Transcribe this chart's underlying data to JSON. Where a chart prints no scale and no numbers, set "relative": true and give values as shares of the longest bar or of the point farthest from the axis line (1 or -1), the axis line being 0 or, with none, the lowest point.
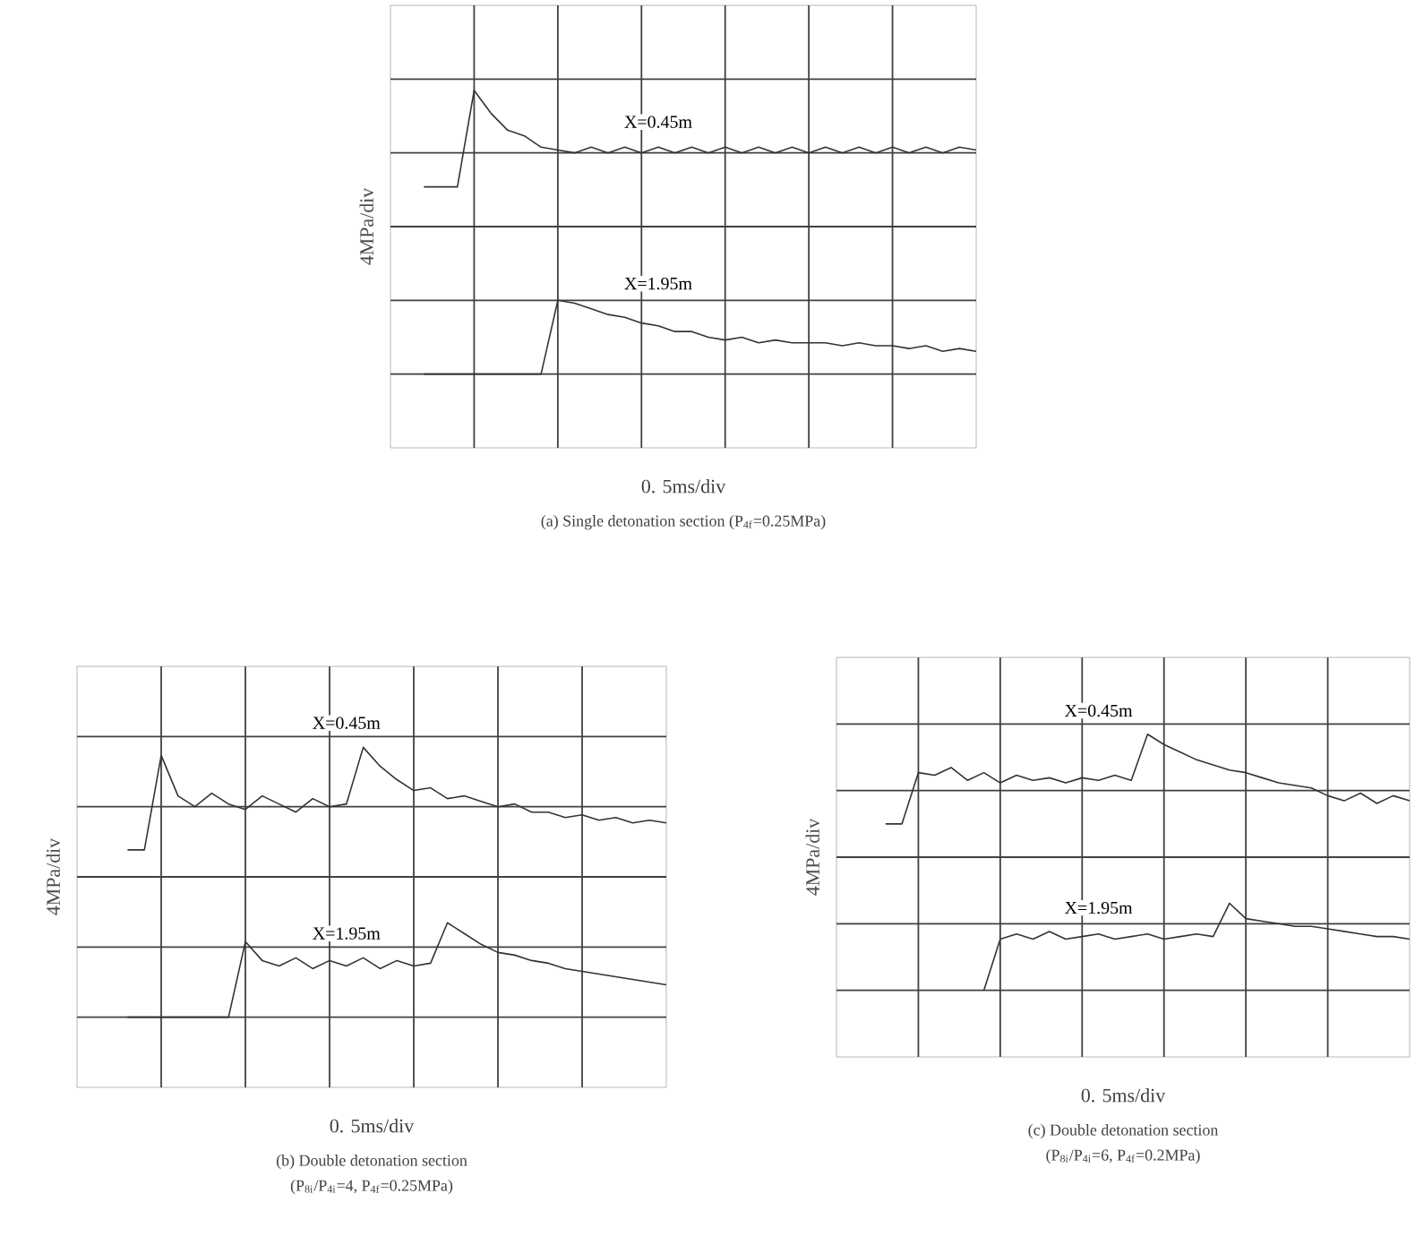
{
  "chart_data": [
    {
      "type": "line",
      "relative": true,
      "title": "(a) Single detonation section (P$_{4f}$=0.25MPa)",
      "xlabel": "0. 5ms/div",
      "ylabel": "4MPa/div",
      "grid": true,
      "marker": "none",
      "line_style": "solid",
      "categories": [
        null,
        null,
        null,
        null,
        null,
        null,
        null,
        null,
        null,
        null,
        null,
        null,
        null,
        null,
        null,
        null,
        null,
        null,
        null,
        null,
        null,
        null,
        null,
        null,
        null,
        null,
        null,
        null,
        null,
        null,
        null,
        null,
        null,
        null,
        null,
        null
      ],
      "series": [
        {
          "name": "X=0.45m",
          "color": "#333333",
          "values": [
            null,
            null,
            0.66,
            0.66,
            0.66,
            1.0,
            0.92,
            0.86,
            0.84,
            0.8,
            0.79,
            0.78,
            0.8,
            0.78,
            0.8,
            0.78,
            0.8,
            0.78,
            0.8,
            0.78,
            0.8,
            0.78,
            0.8,
            0.78,
            0.8,
            0.78,
            0.8,
            0.78,
            0.8,
            0.78,
            0.8,
            0.78,
            0.8,
            0.78,
            0.8,
            0.79
          ]
        },
        {
          "name": "X=1.95m",
          "color": "#333333",
          "values": [
            null,
            null,
            0,
            0,
            0,
            0,
            0,
            0,
            0,
            0,
            0.26,
            0.25,
            0.23,
            0.21,
            0.2,
            0.18,
            0.17,
            0.15,
            0.15,
            0.13,
            0.12,
            0.13,
            0.11,
            0.12,
            0.11,
            0.11,
            0.11,
            0.1,
            0.11,
            0.1,
            0.1,
            0.09,
            0.1,
            0.08,
            0.09,
            0.08
          ]
        }
      ]
    },
    {
      "type": "line",
      "relative": true,
      "title": "(b) Double detonation section",
      "subtitle": "(P$_{8i}$/P$_{4i}$=4, P$_{4f}$=0.25MPa)",
      "xlabel": "0. 5ms/div",
      "ylabel": "4MPa/div",
      "grid": true,
      "marker": "none",
      "line_style": "solid",
      "categories": [
        null,
        null,
        null,
        null,
        null,
        null,
        null,
        null,
        null,
        null,
        null,
        null,
        null,
        null,
        null,
        null,
        null,
        null,
        null,
        null,
        null,
        null,
        null,
        null,
        null,
        null,
        null,
        null,
        null,
        null,
        null,
        null,
        null,
        null,
        null,
        null
      ],
      "series": [
        {
          "name": "X=0.45m",
          "color": "#333333",
          "values": [
            null,
            null,
            null,
            0.62,
            0.62,
            0.97,
            0.82,
            0.78,
            0.83,
            0.79,
            0.77,
            0.82,
            0.79,
            0.76,
            0.81,
            0.78,
            0.79,
            1.0,
            0.93,
            0.88,
            0.84,
            0.85,
            0.81,
            0.82,
            0.8,
            0.78,
            0.79,
            0.76,
            0.76,
            0.74,
            0.75,
            0.73,
            0.74,
            0.72,
            0.73,
            0.72
          ]
        },
        {
          "name": "X=1.95m",
          "color": "#333333",
          "values": [
            null,
            null,
            null,
            0,
            0,
            0,
            0,
            0,
            0,
            0,
            0.28,
            0.21,
            0.19,
            0.22,
            0.18,
            0.21,
            0.19,
            0.22,
            0.18,
            0.21,
            0.19,
            0.2,
            0.35,
            0.31,
            0.27,
            0.24,
            0.23,
            0.21,
            0.2,
            0.18,
            0.17,
            0.16,
            0.15,
            0.14,
            0.13,
            0.12
          ]
        }
      ]
    },
    {
      "type": "line",
      "relative": true,
      "title": "(c) Double detonation section",
      "subtitle": "(P$_{8i}$/P$_{4i}$=6, P$_{4f}$=0.2MPa)",
      "xlabel": "0. 5ms/div",
      "ylabel": "4MPa/div",
      "grid": true,
      "marker": "none",
      "line_style": "solid",
      "categories": [
        null,
        null,
        null,
        null,
        null,
        null,
        null,
        null,
        null,
        null,
        null,
        null,
        null,
        null,
        null,
        null,
        null,
        null,
        null,
        null,
        null,
        null,
        null,
        null,
        null,
        null,
        null,
        null,
        null,
        null,
        null,
        null,
        null,
        null,
        null,
        null
      ],
      "series": [
        {
          "name": "X=0.45m",
          "color": "#333333",
          "values": [
            null,
            null,
            null,
            0.65,
            0.65,
            0.85,
            0.84,
            0.87,
            0.82,
            0.85,
            0.81,
            0.84,
            0.82,
            0.83,
            0.81,
            0.83,
            0.82,
            0.84,
            0.82,
            1.0,
            0.96,
            0.93,
            0.9,
            0.88,
            0.86,
            0.85,
            0.83,
            0.81,
            0.8,
            0.79,
            0.76,
            0.74,
            0.77,
            0.73,
            0.76,
            0.74
          ]
        },
        {
          "name": "X=1.95m",
          "color": "#333333",
          "values": [
            null,
            null,
            null,
            null,
            null,
            null,
            null,
            null,
            null,
            0,
            0.2,
            0.22,
            0.2,
            0.23,
            0.2,
            0.21,
            0.22,
            0.2,
            0.21,
            0.22,
            0.2,
            0.21,
            0.22,
            0.21,
            0.34,
            0.28,
            0.27,
            0.26,
            0.25,
            0.25,
            0.24,
            0.23,
            0.22,
            0.21,
            0.21,
            0.2
          ]
        }
      ]
    }
  ]
}
